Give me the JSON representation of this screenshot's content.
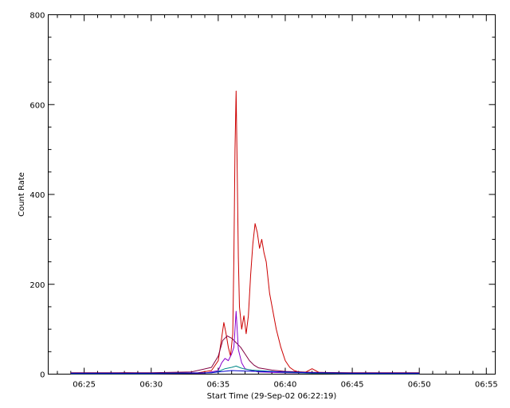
{
  "chart_data": {
    "type": "line",
    "title": "",
    "xlabel": "Start Time (29-Sep-02 06:22:19)",
    "ylabel": "Count Rate",
    "x_unit": "time of day (HH:MM:SS)",
    "xlim": [
      "06:22:19",
      "06:55:40"
    ],
    "ylim": [
      0,
      800
    ],
    "x_ticks": [
      "06:25",
      "06:30",
      "06:35",
      "06:40",
      "06:45",
      "06:50",
      "06:55"
    ],
    "y_ticks": [
      0,
      200,
      400,
      600,
      800
    ],
    "grid": false,
    "legend": "none",
    "series": [
      {
        "color": "#cc0000",
        "points": [
          [
            "06:24:00",
            2
          ],
          [
            "06:26:00",
            1
          ],
          [
            "06:28:00",
            3
          ],
          [
            "06:30:00",
            2
          ],
          [
            "06:32:00",
            2
          ],
          [
            "06:33:30",
            3
          ],
          [
            "06:34:30",
            8
          ],
          [
            "06:35:00",
            30
          ],
          [
            "06:35:15",
            80
          ],
          [
            "06:35:25",
            115
          ],
          [
            "06:35:35",
            90
          ],
          [
            "06:35:45",
            60
          ],
          [
            "06:35:55",
            40
          ],
          [
            "06:36:05",
            90
          ],
          [
            "06:36:10",
            260
          ],
          [
            "06:36:15",
            500
          ],
          [
            "06:36:20",
            630
          ],
          [
            "06:36:25",
            450
          ],
          [
            "06:36:30",
            260
          ],
          [
            "06:36:35",
            150
          ],
          [
            "06:36:45",
            100
          ],
          [
            "06:36:55",
            130
          ],
          [
            "06:37:05",
            90
          ],
          [
            "06:37:15",
            130
          ],
          [
            "06:37:25",
            220
          ],
          [
            "06:37:35",
            290
          ],
          [
            "06:37:45",
            335
          ],
          [
            "06:37:55",
            315
          ],
          [
            "06:38:05",
            280
          ],
          [
            "06:38:15",
            300
          ],
          [
            "06:38:25",
            270
          ],
          [
            "06:38:35",
            250
          ],
          [
            "06:38:50",
            180
          ],
          [
            "06:39:05",
            140
          ],
          [
            "06:39:20",
            100
          ],
          [
            "06:39:40",
            60
          ],
          [
            "06:40:00",
            30
          ],
          [
            "06:40:20",
            15
          ],
          [
            "06:40:40",
            8
          ],
          [
            "06:41:00",
            5
          ],
          [
            "06:41:30",
            4
          ],
          [
            "06:42:00",
            12
          ],
          [
            "06:42:30",
            4
          ],
          [
            "06:43:30",
            3
          ],
          [
            "06:45:00",
            2
          ],
          [
            "06:48:00",
            2
          ],
          [
            "06:50:00",
            2
          ]
        ]
      },
      {
        "color": "#800040",
        "points": [
          [
            "06:24:00",
            3
          ],
          [
            "06:27:00",
            3
          ],
          [
            "06:30:00",
            3
          ],
          [
            "06:33:00",
            5
          ],
          [
            "06:34:30",
            15
          ],
          [
            "06:35:00",
            40
          ],
          [
            "06:35:20",
            75
          ],
          [
            "06:35:40",
            85
          ],
          [
            "06:36:00",
            80
          ],
          [
            "06:36:20",
            70
          ],
          [
            "06:36:40",
            60
          ],
          [
            "06:37:00",
            45
          ],
          [
            "06:37:20",
            30
          ],
          [
            "06:37:40",
            20
          ],
          [
            "06:38:00",
            14
          ],
          [
            "06:39:00",
            9
          ],
          [
            "06:40:00",
            6
          ],
          [
            "06:42:00",
            4
          ],
          [
            "06:45:00",
            3
          ],
          [
            "06:50:00",
            3
          ]
        ]
      },
      {
        "color": "#8800cc",
        "points": [
          [
            "06:24:00",
            1
          ],
          [
            "06:30:00",
            1
          ],
          [
            "06:34:00",
            2
          ],
          [
            "06:35:00",
            8
          ],
          [
            "06:35:15",
            25
          ],
          [
            "06:35:30",
            35
          ],
          [
            "06:35:45",
            30
          ],
          [
            "06:36:00",
            45
          ],
          [
            "06:36:10",
            60
          ],
          [
            "06:36:20",
            140
          ],
          [
            "06:36:30",
            55
          ],
          [
            "06:36:45",
            25
          ],
          [
            "06:37:00",
            12
          ],
          [
            "06:37:30",
            8
          ],
          [
            "06:38:00",
            5
          ],
          [
            "06:40:00",
            3
          ],
          [
            "06:45:00",
            1
          ],
          [
            "06:50:00",
            1
          ]
        ]
      },
      {
        "color": "#008888",
        "points": [
          [
            "06:24:00",
            1
          ],
          [
            "06:30:00",
            1
          ],
          [
            "06:34:30",
            3
          ],
          [
            "06:35:00",
            6
          ],
          [
            "06:35:30",
            12
          ],
          [
            "06:36:00",
            15
          ],
          [
            "06:36:20",
            18
          ],
          [
            "06:36:40",
            14
          ],
          [
            "06:37:00",
            11
          ],
          [
            "06:37:30",
            9
          ],
          [
            "06:38:00",
            8
          ],
          [
            "06:39:00",
            6
          ],
          [
            "06:40:00",
            4
          ],
          [
            "06:42:00",
            2
          ],
          [
            "06:45:00",
            1
          ],
          [
            "06:50:00",
            1
          ]
        ]
      },
      {
        "color": "#0000cc",
        "points": [
          [
            "06:24:00",
            2
          ],
          [
            "06:30:00",
            2
          ],
          [
            "06:34:30",
            3
          ],
          [
            "06:35:00",
            5
          ],
          [
            "06:36:00",
            8
          ],
          [
            "06:37:00",
            7
          ],
          [
            "06:38:00",
            6
          ],
          [
            "06:40:00",
            5
          ],
          [
            "06:42:00",
            3
          ],
          [
            "06:45:00",
            2
          ],
          [
            "06:50:00",
            2
          ]
        ]
      }
    ]
  }
}
